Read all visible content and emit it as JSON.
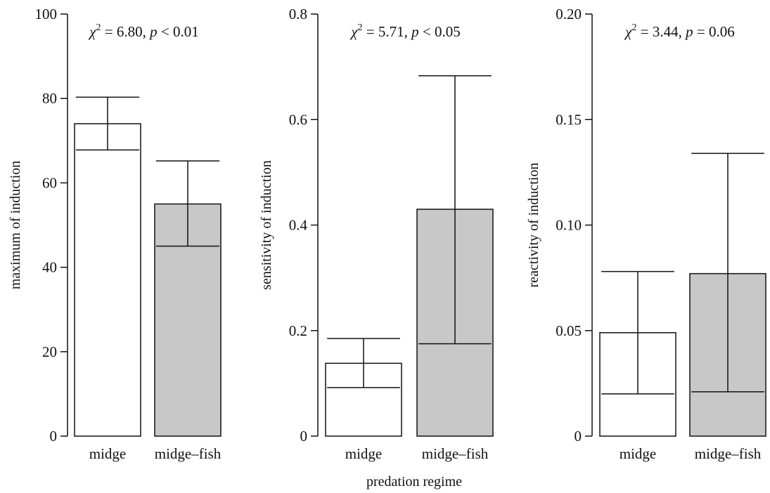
{
  "colors": {
    "midge": "#ffffff",
    "midge-fish": "#c8c8c8",
    "axis": "#111111"
  },
  "x_title": "predation regime",
  "chart_data": [
    {
      "type": "bar",
      "categories": [
        "midge",
        "midge–fish"
      ],
      "values": [
        74,
        55
      ],
      "error_bars": [
        {
          "low": 67.8,
          "high": 80.3
        },
        {
          "low": 45,
          "high": 65.2
        }
      ],
      "ylabel": "maximum of induction",
      "ylim": [
        0,
        100
      ],
      "yticks": [
        "0",
        "20",
        "40",
        "60",
        "80",
        "100"
      ],
      "annotation": {
        "chi_symbol": "χ",
        "chi_exp": "2",
        "chi_value": " = 6.80, ",
        "p_symbol": "p",
        "p_rel": " < 0.01"
      }
    },
    {
      "type": "bar",
      "categories": [
        "midge",
        "midge–fish"
      ],
      "values": [
        0.138,
        0.43
      ],
      "error_bars": [
        {
          "low": 0.092,
          "high": 0.185
        },
        {
          "low": 0.175,
          "high": 0.683
        }
      ],
      "ylabel": "sensitivity of induction",
      "ylim": [
        0,
        0.8
      ],
      "yticks": [
        "0",
        "0.2",
        "0.4",
        "0.6",
        "0.8"
      ],
      "annotation": {
        "chi_symbol": "χ",
        "chi_exp": "2",
        "chi_value": " = 5.71, ",
        "p_symbol": "p",
        "p_rel": " < 0.05"
      }
    },
    {
      "type": "bar",
      "categories": [
        "midge",
        "midge–fish"
      ],
      "values": [
        0.049,
        0.077
      ],
      "error_bars": [
        {
          "low": 0.02,
          "high": 0.078
        },
        {
          "low": 0.021,
          "high": 0.134
        }
      ],
      "ylabel": "reactivity of induction",
      "ylim": [
        0,
        0.2
      ],
      "yticks": [
        "0",
        "0.05",
        "0.10",
        "0.15",
        "0.20"
      ],
      "annotation": {
        "chi_symbol": "χ",
        "chi_exp": "2",
        "chi_value": " = 3.44, ",
        "p_symbol": "p",
        "p_rel": " = 0.06"
      }
    }
  ]
}
